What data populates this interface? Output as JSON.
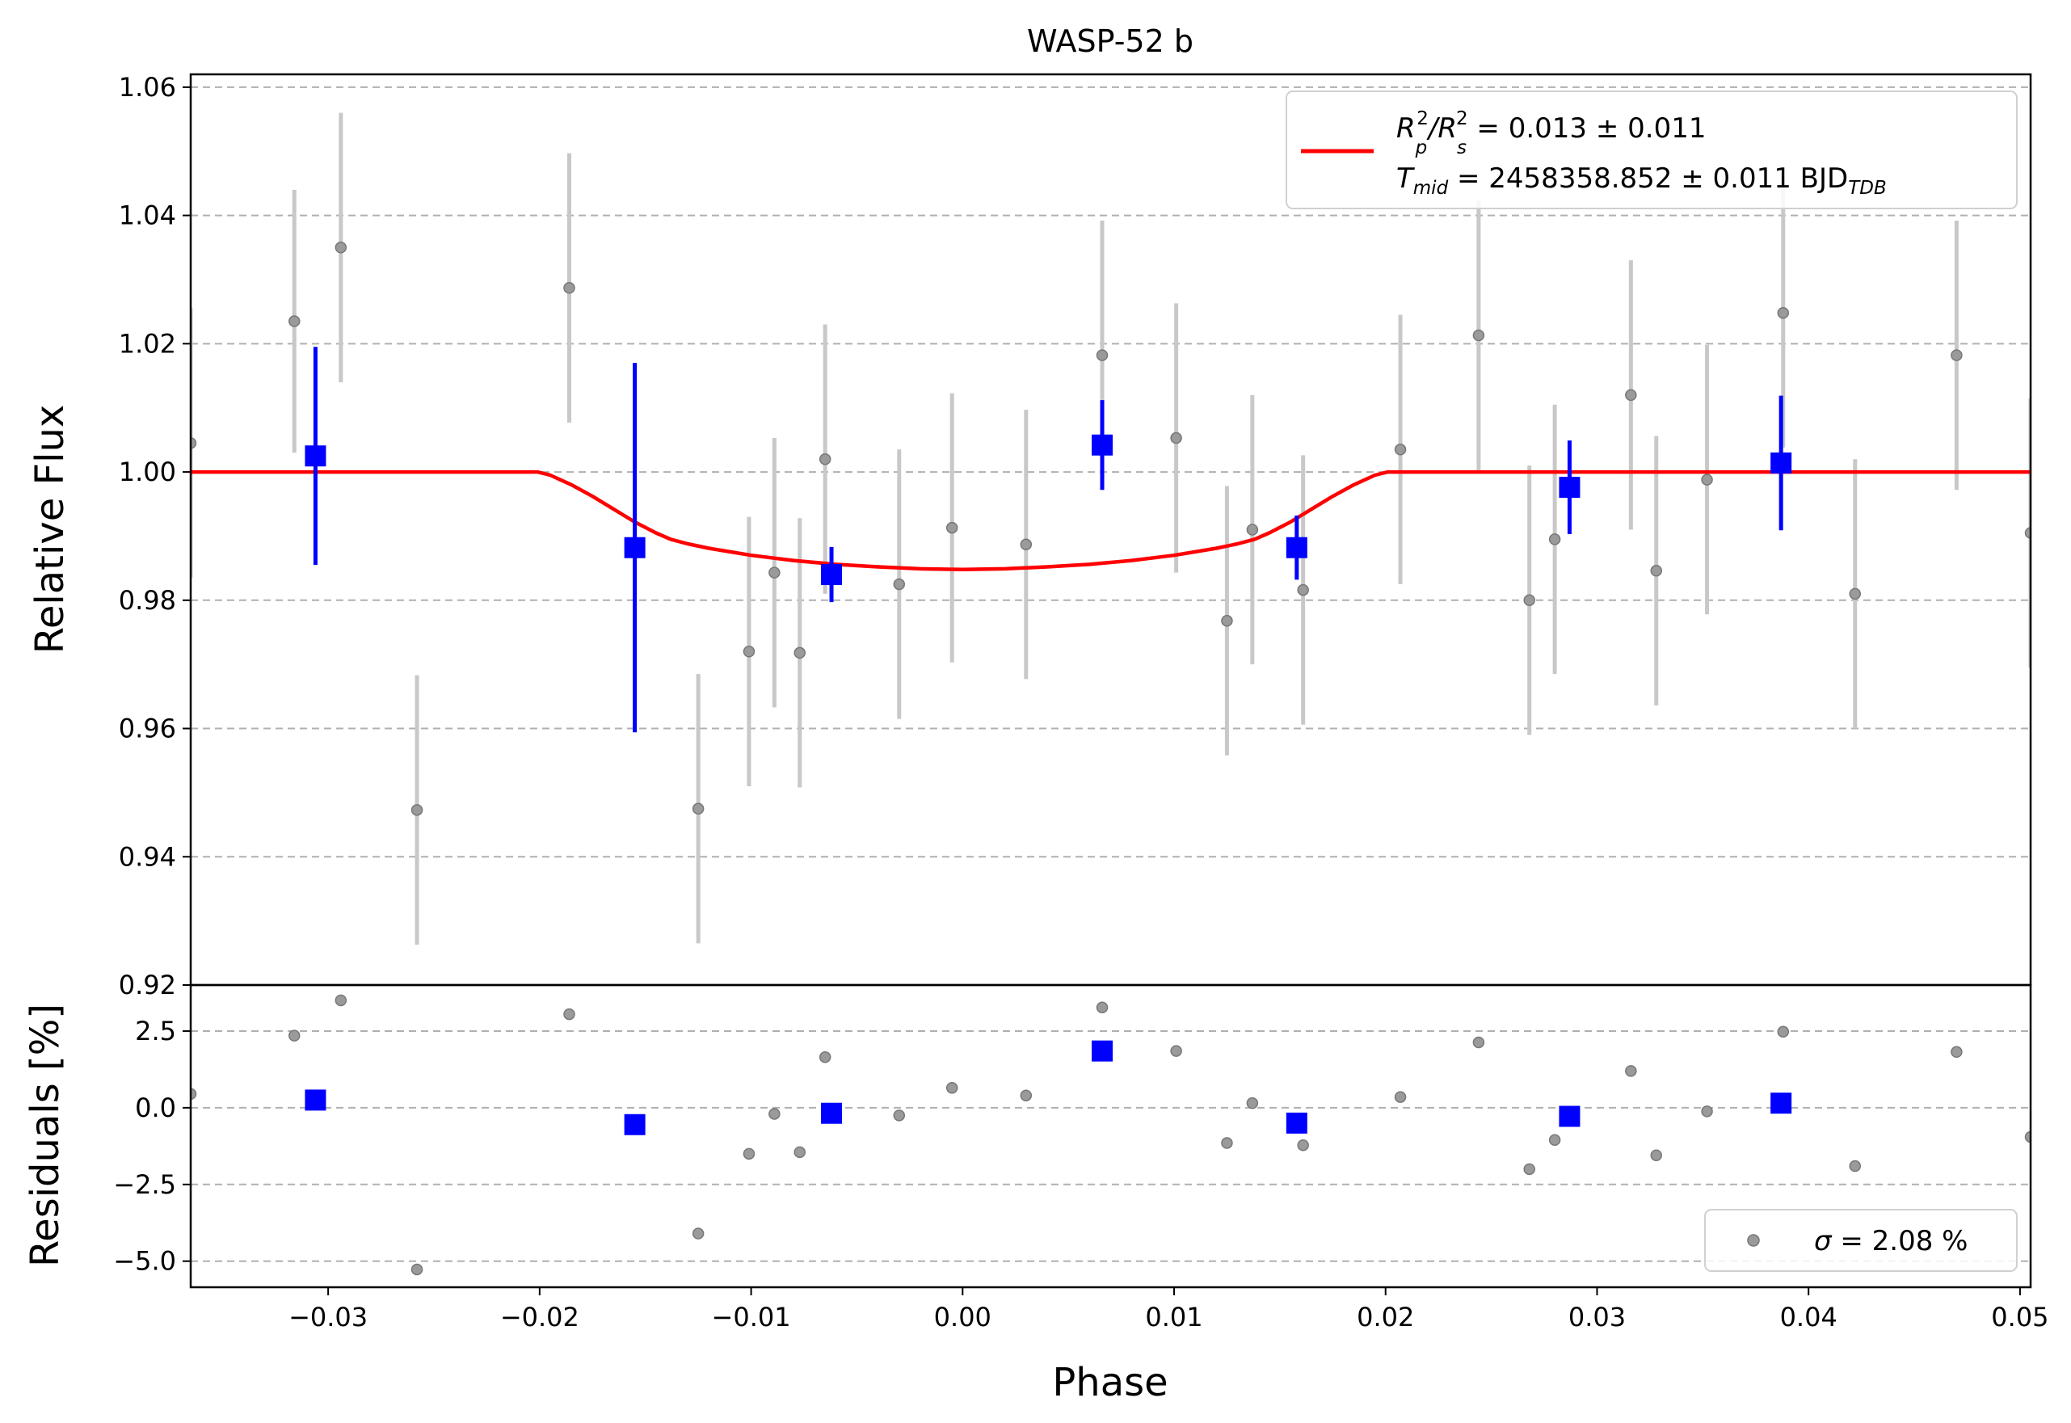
{
  "chart_data": {
    "type": "scatter",
    "title": "WASP-52 b",
    "xlabel": "Phase",
    "xlim": [
      -0.0365,
      0.0505
    ],
    "xticks": [
      -0.03,
      -0.02,
      -0.01,
      0.0,
      0.01,
      0.02,
      0.03,
      0.04,
      0.05
    ],
    "xtick_labels": [
      "−0.03",
      "−0.02",
      "−0.01",
      "0.00",
      "0.01",
      "0.02",
      "0.03",
      "0.04",
      "0.05"
    ],
    "top_panel": {
      "ylabel": "Relative Flux",
      "ylim": [
        0.92,
        1.062
      ],
      "yticks": [
        0.92,
        0.94,
        0.96,
        0.98,
        1.0,
        1.02,
        1.04,
        1.06
      ],
      "ytick_labels": [
        "0.92",
        "0.94",
        "0.96",
        "0.98",
        "1.00",
        "1.02",
        "1.04",
        "1.06"
      ],
      "grid": "y-dashed",
      "legend": {
        "placement": "upper right",
        "line1": {
          "main": "R",
          "sub1": "p",
          "sup1": "2",
          "sep": "/R",
          "sub2": "s",
          "sup2": "2",
          "rest": " = 0.013 ± 0.011"
        },
        "line2": {
          "main": "T",
          "sub1": "mid",
          "rest": " = 2458358.852 ± 0.011 BJD",
          "sub2": "TDB"
        }
      },
      "raw_data": {
        "color": "#808080",
        "errbar_color": "#c8c8c8",
        "points": [
          {
            "x": -0.0365,
            "y": 1.0045,
            "err": 0.021
          },
          {
            "x": -0.0316,
            "y": 1.0235,
            "err": 0.0205
          },
          {
            "x": -0.0294,
            "y": 1.035,
            "err": 0.021
          },
          {
            "x": -0.0258,
            "y": 0.9473,
            "err": 0.021
          },
          {
            "x": -0.0186,
            "y": 1.0287,
            "err": 0.021
          },
          {
            "x": -0.0125,
            "y": 0.9475,
            "err": 0.021
          },
          {
            "x": -0.0101,
            "y": 0.972,
            "err": 0.021
          },
          {
            "x": -0.0089,
            "y": 0.9843,
            "err": 0.021
          },
          {
            "x": -0.0077,
            "y": 0.9718,
            "err": 0.021
          },
          {
            "x": -0.0065,
            "y": 1.002,
            "err": 0.021
          },
          {
            "x": -0.003,
            "y": 0.9825,
            "err": 0.021
          },
          {
            "x": -0.0005,
            "y": 0.9913,
            "err": 0.021
          },
          {
            "x": 0.003,
            "y": 0.9887,
            "err": 0.021
          },
          {
            "x": 0.0066,
            "y": 1.0182,
            "err": 0.021
          },
          {
            "x": 0.0101,
            "y": 1.0053,
            "err": 0.021
          },
          {
            "x": 0.0125,
            "y": 0.9768,
            "err": 0.021
          },
          {
            "x": 0.0137,
            "y": 0.991,
            "err": 0.021
          },
          {
            "x": 0.0161,
            "y": 0.9816,
            "err": 0.021
          },
          {
            "x": 0.0207,
            "y": 1.0035,
            "err": 0.021
          },
          {
            "x": 0.0244,
            "y": 1.0213,
            "err": 0.021
          },
          {
            "x": 0.0268,
            "y": 0.98,
            "err": 0.021
          },
          {
            "x": 0.028,
            "y": 0.9895,
            "err": 0.021
          },
          {
            "x": 0.0316,
            "y": 1.012,
            "err": 0.021
          },
          {
            "x": 0.0328,
            "y": 0.9846,
            "err": 0.021
          },
          {
            "x": 0.0352,
            "y": 0.9988,
            "err": 0.021
          },
          {
            "x": 0.0388,
            "y": 1.0248,
            "err": 0.021
          },
          {
            "x": 0.0422,
            "y": 0.981,
            "err": 0.021
          },
          {
            "x": 0.047,
            "y": 1.0182,
            "err": 0.021
          },
          {
            "x": 0.0505,
            "y": 0.9905,
            "err": 0.021
          }
        ]
      },
      "binned_data": {
        "color": "#0000ff",
        "points": [
          {
            "x": -0.0306,
            "y": 1.0025,
            "err": 0.017
          },
          {
            "x": -0.0155,
            "y": 0.9882,
            "err": 0.0288
          },
          {
            "x": -0.0062,
            "y": 0.984,
            "err": 0.0043
          },
          {
            "x": 0.0066,
            "y": 1.0042,
            "err": 0.007
          },
          {
            "x": 0.0158,
            "y": 0.9882,
            "err": 0.005
          },
          {
            "x": 0.0287,
            "y": 0.9976,
            "err": 0.0073
          },
          {
            "x": 0.0387,
            "y": 1.0014,
            "err": 0.0105
          }
        ]
      },
      "model": {
        "color": "#ff0000",
        "points": [
          [
            -0.0365,
            1.0
          ],
          [
            -0.0201,
            1.0
          ],
          [
            -0.0195,
            0.9995
          ],
          [
            -0.0185,
            0.998
          ],
          [
            -0.0175,
            0.9962
          ],
          [
            -0.0165,
            0.9942
          ],
          [
            -0.0155,
            0.9922
          ],
          [
            -0.0145,
            0.9905
          ],
          [
            -0.0138,
            0.9895
          ],
          [
            -0.013,
            0.9888
          ],
          [
            -0.012,
            0.9881
          ],
          [
            -0.01,
            0.987
          ],
          [
            -0.008,
            0.9862
          ],
          [
            -0.006,
            0.9856
          ],
          [
            -0.004,
            0.9852
          ],
          [
            -0.002,
            0.9849
          ],
          [
            0.0,
            0.9848
          ],
          [
            0.002,
            0.9849
          ],
          [
            0.004,
            0.9852
          ],
          [
            0.006,
            0.9856
          ],
          [
            0.008,
            0.9862
          ],
          [
            0.01,
            0.987
          ],
          [
            0.012,
            0.9881
          ],
          [
            0.013,
            0.9888
          ],
          [
            0.0138,
            0.9895
          ],
          [
            0.0145,
            0.9905
          ],
          [
            0.0155,
            0.9922
          ],
          [
            0.0165,
            0.9942
          ],
          [
            0.0175,
            0.9962
          ],
          [
            0.0185,
            0.998
          ],
          [
            0.0195,
            0.9995
          ],
          [
            0.0201,
            1.0
          ],
          [
            0.0505,
            1.0
          ]
        ]
      }
    },
    "bottom_panel": {
      "ylabel": "Residuals [%]",
      "ylim": [
        -5.85,
        4.0
      ],
      "yticks": [
        2.5,
        0.0,
        -2.5,
        -5.0
      ],
      "ytick_labels": [
        "2.5",
        "0.0",
        "−2.5",
        "−5.0"
      ],
      "grid": "y-dashed",
      "legend": {
        "placement": "lower right",
        "label_sym": "σ",
        "label_rest": " = 2.08 %"
      },
      "raw_residuals": [
        {
          "x": -0.0365,
          "y": 0.45
        },
        {
          "x": -0.0316,
          "y": 2.35
        },
        {
          "x": -0.0294,
          "y": 3.5
        },
        {
          "x": -0.0258,
          "y": -5.27
        },
        {
          "x": -0.0186,
          "y": 3.05
        },
        {
          "x": -0.0125,
          "y": -4.1
        },
        {
          "x": -0.0101,
          "y": -1.5
        },
        {
          "x": -0.0089,
          "y": -0.2
        },
        {
          "x": -0.0077,
          "y": -1.45
        },
        {
          "x": -0.0065,
          "y": 1.65
        },
        {
          "x": -0.003,
          "y": -0.25
        },
        {
          "x": -0.0005,
          "y": 0.65
        },
        {
          "x": 0.003,
          "y": 0.4
        },
        {
          "x": 0.0066,
          "y": 3.27
        },
        {
          "x": 0.0101,
          "y": 1.85
        },
        {
          "x": 0.0125,
          "y": -1.15
        },
        {
          "x": 0.0137,
          "y": 0.15
        },
        {
          "x": 0.0161,
          "y": -1.22
        },
        {
          "x": 0.0207,
          "y": 0.35
        },
        {
          "x": 0.0244,
          "y": 2.13
        },
        {
          "x": 0.0268,
          "y": -2.0
        },
        {
          "x": 0.028,
          "y": -1.05
        },
        {
          "x": 0.0316,
          "y": 1.2
        },
        {
          "x": 0.0328,
          "y": -1.55
        },
        {
          "x": 0.0352,
          "y": -0.12
        },
        {
          "x": 0.0388,
          "y": 2.48
        },
        {
          "x": 0.0422,
          "y": -1.9
        },
        {
          "x": 0.047,
          "y": 1.82
        },
        {
          "x": 0.0505,
          "y": -0.95
        }
      ],
      "binned_residuals": [
        {
          "x": -0.0306,
          "y": 0.25
        },
        {
          "x": -0.0155,
          "y": -0.55
        },
        {
          "x": -0.0062,
          "y": -0.18
        },
        {
          "x": 0.0066,
          "y": 1.85
        },
        {
          "x": 0.0158,
          "y": -0.5
        },
        {
          "x": 0.0287,
          "y": -0.28
        },
        {
          "x": 0.0387,
          "y": 0.15
        }
      ]
    }
  }
}
